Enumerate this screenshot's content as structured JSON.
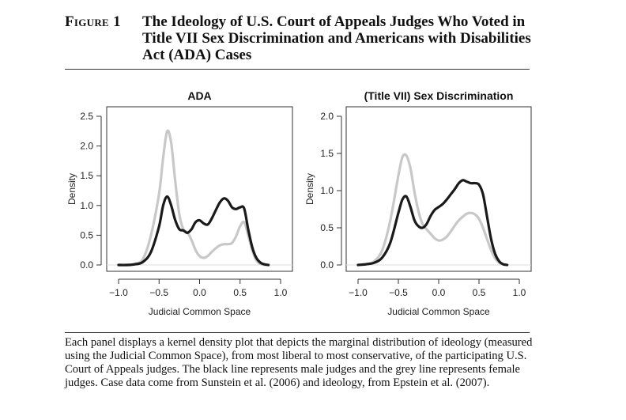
{
  "figure": {
    "label": "Figure 1",
    "title": "The Ideology of U.S. Court of Appeals Judges Who Voted in Title VII Sex Discrimination and Americans with Disabilities Act (ADA) Cases"
  },
  "caption": "Each panel displays a kernel density plot that depicts the marginal distribution of ideology (measured using the Judicial Common Space), from most liberal to most conservative, of the participating U.S. Court of Appeals judges. The black line represents male judges and the grey line represents female judges. Case data come from Sunstein et al. (2006) and ideology, from Epstein et al. (2007).",
  "colors": {
    "male": "#1a1a1a",
    "female": "#c8c8c8",
    "axis": "#333333"
  },
  "chart_data": [
    {
      "type": "line",
      "title": "ADA",
      "xlabel": "Judicial Common Space",
      "ylabel": "Density",
      "xlim": [
        -1.0,
        1.0
      ],
      "ylim": [
        0,
        2.5
      ],
      "x_ticks": [
        "-1.0",
        "-0.5",
        "0.0",
        "0.5",
        "1.0"
      ],
      "y_ticks": [
        "0.0",
        "0.5",
        "1.0",
        "1.5",
        "2.0",
        "2.5"
      ],
      "series": [
        {
          "color": "male",
          "points": [
            [
              -1.0,
              0.0
            ],
            [
              -0.9,
              0.0
            ],
            [
              -0.8,
              0.01
            ],
            [
              -0.7,
              0.05
            ],
            [
              -0.6,
              0.22
            ],
            [
              -0.5,
              0.65
            ],
            [
              -0.45,
              1.0
            ],
            [
              -0.4,
              1.15
            ],
            [
              -0.35,
              1.0
            ],
            [
              -0.3,
              0.75
            ],
            [
              -0.25,
              0.6
            ],
            [
              -0.2,
              0.58
            ],
            [
              -0.15,
              0.54
            ],
            [
              -0.1,
              0.6
            ],
            [
              -0.05,
              0.72
            ],
            [
              0.0,
              0.75
            ],
            [
              0.05,
              0.7
            ],
            [
              0.1,
              0.68
            ],
            [
              0.15,
              0.78
            ],
            [
              0.2,
              0.92
            ],
            [
              0.25,
              1.05
            ],
            [
              0.3,
              1.12
            ],
            [
              0.35,
              1.08
            ],
            [
              0.4,
              0.97
            ],
            [
              0.45,
              0.94
            ],
            [
              0.5,
              0.97
            ],
            [
              0.55,
              0.95
            ],
            [
              0.6,
              0.6
            ],
            [
              0.65,
              0.3
            ],
            [
              0.7,
              0.12
            ],
            [
              0.75,
              0.04
            ],
            [
              0.8,
              0.01
            ],
            [
              0.85,
              0.0
            ]
          ]
        },
        {
          "color": "female",
          "points": [
            [
              -1.0,
              0.0
            ],
            [
              -0.9,
              0.0
            ],
            [
              -0.8,
              0.02
            ],
            [
              -0.7,
              0.1
            ],
            [
              -0.6,
              0.5
            ],
            [
              -0.5,
              1.2
            ],
            [
              -0.45,
              1.8
            ],
            [
              -0.4,
              2.25
            ],
            [
              -0.35,
              2.05
            ],
            [
              -0.3,
              1.4
            ],
            [
              -0.25,
              0.85
            ],
            [
              -0.2,
              0.6
            ],
            [
              -0.15,
              0.55
            ],
            [
              -0.1,
              0.42
            ],
            [
              -0.05,
              0.25
            ],
            [
              0.0,
              0.15
            ],
            [
              0.05,
              0.12
            ],
            [
              0.1,
              0.15
            ],
            [
              0.15,
              0.22
            ],
            [
              0.2,
              0.28
            ],
            [
              0.25,
              0.33
            ],
            [
              0.3,
              0.35
            ],
            [
              0.35,
              0.35
            ],
            [
              0.4,
              0.37
            ],
            [
              0.45,
              0.48
            ],
            [
              0.5,
              0.65
            ],
            [
              0.55,
              0.72
            ],
            [
              0.6,
              0.5
            ],
            [
              0.65,
              0.25
            ],
            [
              0.7,
              0.08
            ],
            [
              0.75,
              0.02
            ],
            [
              0.8,
              0.0
            ]
          ]
        }
      ]
    },
    {
      "type": "line",
      "title": "(Title VII) Sex Discrimination",
      "xlabel": "Judicial Common Space",
      "ylabel": "Density",
      "xlim": [
        -1.0,
        1.0
      ],
      "ylim": [
        0,
        2.0
      ],
      "x_ticks": [
        "-1.0",
        "-0.5",
        "0.0",
        "0.5",
        "1.0"
      ],
      "y_ticks": [
        "0.0",
        "0.5",
        "1.0",
        "1.5",
        "2.0"
      ],
      "series": [
        {
          "color": "male",
          "points": [
            [
              -1.0,
              0.0
            ],
            [
              -0.9,
              0.01
            ],
            [
              -0.8,
              0.03
            ],
            [
              -0.7,
              0.1
            ],
            [
              -0.6,
              0.3
            ],
            [
              -0.5,
              0.7
            ],
            [
              -0.45,
              0.88
            ],
            [
              -0.4,
              0.92
            ],
            [
              -0.35,
              0.78
            ],
            [
              -0.3,
              0.6
            ],
            [
              -0.25,
              0.52
            ],
            [
              -0.2,
              0.5
            ],
            [
              -0.15,
              0.55
            ],
            [
              -0.1,
              0.66
            ],
            [
              -0.05,
              0.74
            ],
            [
              0.0,
              0.78
            ],
            [
              0.05,
              0.82
            ],
            [
              0.1,
              0.88
            ],
            [
              0.15,
              0.95
            ],
            [
              0.2,
              1.02
            ],
            [
              0.25,
              1.1
            ],
            [
              0.3,
              1.14
            ],
            [
              0.35,
              1.12
            ],
            [
              0.4,
              1.1
            ],
            [
              0.45,
              1.1
            ],
            [
              0.5,
              1.08
            ],
            [
              0.55,
              0.95
            ],
            [
              0.6,
              0.65
            ],
            [
              0.65,
              0.35
            ],
            [
              0.7,
              0.15
            ],
            [
              0.75,
              0.05
            ],
            [
              0.8,
              0.01
            ],
            [
              0.85,
              0.0
            ]
          ]
        },
        {
          "color": "female",
          "points": [
            [
              -1.0,
              0.0
            ],
            [
              -0.9,
              0.01
            ],
            [
              -0.8,
              0.05
            ],
            [
              -0.7,
              0.2
            ],
            [
              -0.6,
              0.6
            ],
            [
              -0.5,
              1.2
            ],
            [
              -0.45,
              1.45
            ],
            [
              -0.4,
              1.47
            ],
            [
              -0.35,
              1.3
            ],
            [
              -0.3,
              0.98
            ],
            [
              -0.25,
              0.72
            ],
            [
              -0.2,
              0.55
            ],
            [
              -0.15,
              0.48
            ],
            [
              -0.1,
              0.42
            ],
            [
              -0.05,
              0.36
            ],
            [
              0.0,
              0.33
            ],
            [
              0.05,
              0.34
            ],
            [
              0.1,
              0.38
            ],
            [
              0.15,
              0.45
            ],
            [
              0.2,
              0.53
            ],
            [
              0.25,
              0.6
            ],
            [
              0.3,
              0.65
            ],
            [
              0.35,
              0.69
            ],
            [
              0.4,
              0.7
            ],
            [
              0.45,
              0.68
            ],
            [
              0.5,
              0.62
            ],
            [
              0.55,
              0.5
            ],
            [
              0.6,
              0.35
            ],
            [
              0.65,
              0.2
            ],
            [
              0.7,
              0.09
            ],
            [
              0.75,
              0.03
            ],
            [
              0.8,
              0.01
            ],
            [
              0.85,
              0.0
            ]
          ]
        }
      ]
    }
  ]
}
